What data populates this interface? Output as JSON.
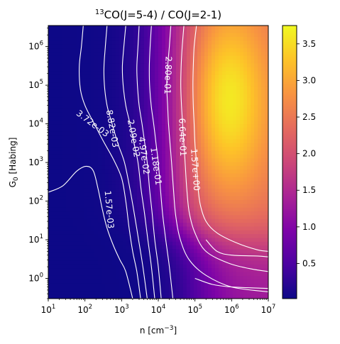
{
  "chart_data": {
    "type": "heatmap",
    "title_iso": "13",
    "title_rest": "CO(J=5-4) / CO(J=2-1)",
    "xlabel_main": "n [cm",
    "xlabel_sup": "−3",
    "xlabel_end": "]",
    "ylabel_main": "G",
    "ylabel_sub": "0",
    "ylabel_end": " [Habing]",
    "x_scale": "log",
    "y_scale": "log",
    "xlim": [
      10,
      10000000
    ],
    "ylim": [
      0.3,
      3500000
    ],
    "x_ticks": [
      {
        "base": "10",
        "exp": "1",
        "value": 10
      },
      {
        "base": "10",
        "exp": "2",
        "value": 100
      },
      {
        "base": "10",
        "exp": "3",
        "value": 1000
      },
      {
        "base": "10",
        "exp": "4",
        "value": 10000
      },
      {
        "base": "10",
        "exp": "5",
        "value": 100000
      },
      {
        "base": "10",
        "exp": "6",
        "value": 1000000
      },
      {
        "base": "10",
        "exp": "7",
        "value": 10000000
      }
    ],
    "y_ticks": [
      {
        "base": "10",
        "exp": "0",
        "value": 1
      },
      {
        "base": "10",
        "exp": "1",
        "value": 10
      },
      {
        "base": "10",
        "exp": "2",
        "value": 100
      },
      {
        "base": "10",
        "exp": "3",
        "value": 1000
      },
      {
        "base": "10",
        "exp": "4",
        "value": 10000
      },
      {
        "base": "10",
        "exp": "5",
        "value": 100000
      },
      {
        "base": "10",
        "exp": "6",
        "value": 1000000
      }
    ],
    "colorbar": {
      "colormap": "plasma",
      "range": [
        0.02,
        3.75
      ],
      "ticks": [
        "0.5",
        "1.0",
        "1.5",
        "2.0",
        "2.5",
        "3.0",
        "3.5"
      ],
      "tick_values": [
        0.5,
        1.0,
        1.5,
        2.0,
        2.5,
        3.0,
        3.5
      ]
    },
    "contour_color": "#ffffff",
    "contours": [
      {
        "level": "1.57e-03",
        "points": [
          [
            10,
            170
          ],
          [
            25,
            250
          ],
          [
            60,
            600
          ],
          [
            110,
            800
          ],
          [
            170,
            600
          ],
          [
            230,
            200
          ],
          [
            300,
            60
          ],
          [
            400,
            20
          ],
          [
            600,
            7
          ],
          [
            900,
            3
          ],
          [
            1300,
            1.5
          ],
          [
            2000,
            0.3
          ]
        ]
      },
      {
        "level": "3.72e-03",
        "points": [
          [
            90,
            3500000
          ],
          [
            80,
            1000000
          ],
          [
            70,
            300000
          ],
          [
            75,
            80000
          ],
          [
            100,
            30000
          ],
          [
            180,
            10000
          ],
          [
            320,
            3500
          ],
          [
            600,
            1200
          ],
          [
            1000,
            400
          ],
          [
            1300,
            100
          ],
          [
            1600,
            20
          ],
          [
            2000,
            5
          ],
          [
            2600,
            1.5
          ],
          [
            3300,
            0.3
          ]
        ]
      },
      {
        "level": "8.82e-03",
        "points": [
          [
            400,
            3500000
          ],
          [
            360,
            1000000
          ],
          [
            330,
            300000
          ],
          [
            340,
            100000
          ],
          [
            400,
            30000
          ],
          [
            550,
            10000
          ],
          [
            800,
            3000
          ],
          [
            1200,
            1000
          ],
          [
            1700,
            200
          ],
          [
            2200,
            50
          ],
          [
            2900,
            10
          ],
          [
            3800,
            2
          ],
          [
            5000,
            0.3
          ]
        ]
      },
      {
        "level": "2.09e-02",
        "points": [
          [
            1300,
            3500000
          ],
          [
            1150,
            1000000
          ],
          [
            1050,
            300000
          ],
          [
            1100,
            100000
          ],
          [
            1300,
            30000
          ],
          [
            1700,
            10000
          ],
          [
            2200,
            3000
          ],
          [
            2800,
            1000
          ],
          [
            3400,
            200
          ],
          [
            4200,
            50
          ],
          [
            5200,
            10
          ],
          [
            6500,
            2
          ],
          [
            8000,
            0.3
          ]
        ]
      },
      {
        "level": "4.97e-02",
        "points": [
          [
            3000,
            3500000
          ],
          [
            2800,
            1000000
          ],
          [
            2600,
            300000
          ],
          [
            2700,
            100000
          ],
          [
            3000,
            30000
          ],
          [
            3600,
            10000
          ],
          [
            4300,
            3000
          ],
          [
            5000,
            1000
          ],
          [
            5800,
            200
          ],
          [
            6800,
            50
          ],
          [
            8000,
            10
          ],
          [
            10000,
            2
          ],
          [
            12000,
            0.3
          ]
        ]
      },
      {
        "level": "1.18e-01",
        "points": [
          [
            6500,
            3500000
          ],
          [
            6000,
            1000000
          ],
          [
            5700,
            300000
          ],
          [
            5800,
            100000
          ],
          [
            6400,
            30000
          ],
          [
            7500,
            10000
          ],
          [
            8700,
            3000
          ],
          [
            10000,
            1000
          ],
          [
            11500,
            200
          ],
          [
            13000,
            50
          ],
          [
            16000,
            10
          ],
          [
            20000,
            2
          ],
          [
            25000,
            0.3
          ]
        ]
      },
      {
        "level": "2.80e-01",
        "points": [
          [
            22000,
            3500000
          ],
          [
            20000,
            1000000
          ],
          [
            18000,
            300000
          ],
          [
            17000,
            100000
          ],
          [
            18000,
            30000
          ],
          [
            19000,
            10000
          ],
          [
            21000,
            3000
          ],
          [
            23000,
            1000
          ],
          [
            26000,
            200
          ],
          [
            30000,
            40
          ],
          [
            40000,
            10
          ],
          [
            70000,
            3
          ],
          [
            200000,
            1.2
          ],
          [
            1000000,
            0.6
          ],
          [
            10000000,
            0.45
          ]
        ]
      },
      {
        "level": "6.64e-01",
        "points": [
          [
            50000,
            3500000
          ],
          [
            45000,
            1000000
          ],
          [
            42000,
            300000
          ],
          [
            41000,
            100000
          ],
          [
            43000,
            30000
          ],
          [
            46000,
            10000
          ],
          [
            50000,
            3000
          ],
          [
            54000,
            1000
          ],
          [
            60000,
            200
          ],
          [
            70000,
            50
          ],
          [
            100000,
            15
          ],
          [
            200000,
            5
          ],
          [
            800000,
            2.5
          ],
          [
            3000000,
            1.8
          ],
          [
            10000000,
            1.5
          ]
        ]
      },
      {
        "level": "1.57e+00",
        "points": [
          [
            110000,
            3500000
          ],
          [
            95000,
            1000000
          ],
          [
            90000,
            300000
          ],
          [
            88000,
            100000
          ],
          [
            90000,
            30000
          ],
          [
            95000,
            10000
          ],
          [
            100000,
            3000
          ],
          [
            110000,
            1000
          ],
          [
            120000,
            250
          ],
          [
            140000,
            80
          ],
          [
            200000,
            30
          ],
          [
            400000,
            15
          ],
          [
            1500000,
            8
          ],
          [
            5000000,
            5.5
          ],
          [
            10000000,
            5
          ]
        ]
      },
      {
        "level": "",
        "points": [
          [
            200000,
            10
          ],
          [
            400000,
            5
          ],
          [
            1000000,
            4
          ],
          [
            5000000,
            3.8
          ],
          [
            10000000,
            3.6
          ]
        ]
      },
      {
        "level": "",
        "points": [
          [
            100000,
            1
          ],
          [
            300000,
            0.7
          ],
          [
            1000000,
            0.6
          ],
          [
            10000000,
            0.55
          ]
        ]
      }
    ],
    "contour_labels": [
      {
        "text": "1.57e-03",
        "x": 450,
        "y": 60,
        "angle": 85
      },
      {
        "text": "3.72e-03",
        "x": 160,
        "y": 10000,
        "angle": 37
      },
      {
        "text": "8.82e-03",
        "x": 550,
        "y": 7500,
        "angle": 80
      },
      {
        "text": "2.09e-02",
        "x": 2100,
        "y": 4200,
        "angle": 80
      },
      {
        "text": "4.97e-02",
        "x": 4000,
        "y": 1500,
        "angle": 82
      },
      {
        "text": "1.18e-01",
        "x": 8500,
        "y": 800,
        "angle": 82
      },
      {
        "text": "2.80e-01",
        "x": 18000,
        "y": 180000,
        "angle": 92
      },
      {
        "text": "6.64e-01",
        "x": 45000,
        "y": 4500,
        "angle": 88
      },
      {
        "text": "1.57e+00",
        "x": 100000,
        "y": 650,
        "angle": 86
      }
    ]
  }
}
